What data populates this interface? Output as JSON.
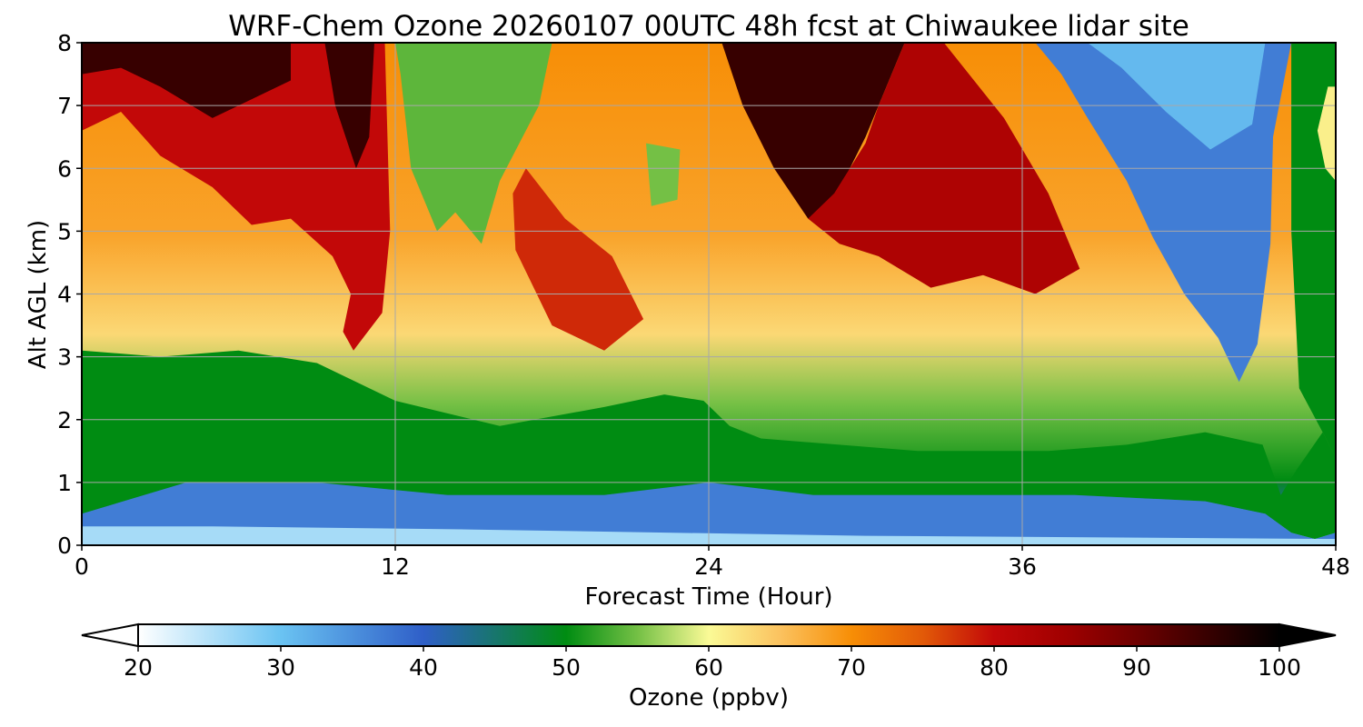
{
  "chart_data": {
    "type": "heatmap",
    "title": "WRF-Chem Ozone  20260107 00UTC 48h fcst at Chiwaukee lidar site",
    "xlabel": "Forecast Time (Hour)",
    "ylabel": "Alt AGL (km)",
    "xlim": [
      0,
      48
    ],
    "ylim": [
      0,
      8
    ],
    "x_ticks": [
      "0",
      "12",
      "24",
      "36",
      "48"
    ],
    "y_ticks": [
      "0",
      "1",
      "2",
      "3",
      "4",
      "5",
      "6",
      "7",
      "8"
    ],
    "grid": true,
    "colorbar": {
      "label": "Ozone  (ppbv)",
      "range": [
        20,
        100
      ],
      "ticks": [
        "20",
        "30",
        "40",
        "50",
        "60",
        "70",
        "80",
        "90",
        "100"
      ],
      "extend": "both",
      "stops": [
        {
          "v": 20,
          "color": "#ffffff"
        },
        {
          "v": 30,
          "color": "#6ac3f2"
        },
        {
          "v": 40,
          "color": "#2f5fc8"
        },
        {
          "v": 50,
          "color": "#008c12"
        },
        {
          "v": 55,
          "color": "#74c045"
        },
        {
          "v": 60,
          "color": "#fafa96"
        },
        {
          "v": 65,
          "color": "#fbc25f"
        },
        {
          "v": 70,
          "color": "#f78e06"
        },
        {
          "v": 75,
          "color": "#e25a08"
        },
        {
          "v": 80,
          "color": "#c20808"
        },
        {
          "v": 85,
          "color": "#a00000"
        },
        {
          "v": 90,
          "color": "#6e0000"
        },
        {
          "v": 100,
          "color": "#000000"
        }
      ]
    },
    "regions": [
      {
        "name": "black-upper-left",
        "value": 95,
        "pts": [
          [
            0,
            7.3
          ],
          [
            1.5,
            7.4
          ],
          [
            3,
            6.7
          ],
          [
            5,
            6.2
          ],
          [
            6.5,
            5.3
          ],
          [
            8,
            5.7
          ],
          [
            8,
            8
          ],
          [
            0,
            8
          ]
        ]
      },
      {
        "name": "red-upper-left",
        "value": 80,
        "pts": [
          [
            0,
            6.6
          ],
          [
            1.5,
            6.9
          ],
          [
            3,
            6.2
          ],
          [
            5,
            5.7
          ],
          [
            6.5,
            5.1
          ],
          [
            8,
            5.2
          ],
          [
            9.6,
            4.6
          ],
          [
            10.3,
            4.0
          ],
          [
            10,
            3.4
          ],
          [
            10.4,
            3.1
          ],
          [
            11.5,
            3.7
          ],
          [
            11.8,
            5.0
          ],
          [
            11.6,
            8
          ],
          [
            8,
            8
          ],
          [
            8,
            7.4
          ],
          [
            5,
            6.8
          ],
          [
            3,
            7.3
          ],
          [
            1.5,
            7.6
          ],
          [
            0,
            7.5
          ]
        ]
      },
      {
        "name": "black-streak-left",
        "value": 95,
        "pts": [
          [
            9.3,
            8
          ],
          [
            11.2,
            8
          ],
          [
            11.0,
            6.5
          ],
          [
            10.5,
            6.0
          ],
          [
            9.7,
            7.0
          ]
        ]
      },
      {
        "name": "green-upper-mid",
        "value": 54,
        "pts": [
          [
            12,
            8
          ],
          [
            18,
            8
          ],
          [
            17.5,
            7.0
          ],
          [
            16,
            5.8
          ],
          [
            15.3,
            4.8
          ],
          [
            14.3,
            5.3
          ],
          [
            13.6,
            5.0
          ],
          [
            12.6,
            6.0
          ],
          [
            12.2,
            7.5
          ]
        ]
      },
      {
        "name": "green-blob-mid",
        "value": 55,
        "pts": [
          [
            21.6,
            6.4
          ],
          [
            22.9,
            6.3
          ],
          [
            22.8,
            5.5
          ],
          [
            21.8,
            5.4
          ]
        ]
      },
      {
        "name": "red-mid",
        "value": 78,
        "pts": [
          [
            17,
            6.0
          ],
          [
            18.5,
            5.2
          ],
          [
            20.3,
            4.6
          ],
          [
            21.5,
            3.6
          ],
          [
            20,
            3.1
          ],
          [
            18,
            3.5
          ],
          [
            16.6,
            4.7
          ],
          [
            16.5,
            5.6
          ]
        ]
      },
      {
        "name": "black-upper-mid",
        "value": 95,
        "pts": [
          [
            24.5,
            8
          ],
          [
            31.5,
            8
          ],
          [
            30.5,
            7.0
          ],
          [
            30,
            6.5
          ],
          [
            28.8,
            5.5
          ],
          [
            27.8,
            5.2
          ],
          [
            26.5,
            6.0
          ],
          [
            25.3,
            7.0
          ]
        ]
      },
      {
        "name": "red-upper-right",
        "value": 83,
        "pts": [
          [
            27.8,
            5.2
          ],
          [
            29.0,
            4.8
          ],
          [
            30.5,
            4.6
          ],
          [
            32.5,
            4.1
          ],
          [
            34.5,
            4.3
          ],
          [
            36.5,
            4.0
          ],
          [
            38.2,
            4.4
          ],
          [
            37.0,
            5.6
          ],
          [
            35.3,
            6.8
          ],
          [
            33,
            8
          ],
          [
            31.5,
            8
          ],
          [
            30.5,
            7.0
          ],
          [
            30,
            6.4
          ],
          [
            28.8,
            5.6
          ]
        ]
      },
      {
        "name": "blue-upper-right",
        "value": 37,
        "pts": [
          [
            36.5,
            8
          ],
          [
            46.3,
            8
          ],
          [
            45.6,
            6.5
          ],
          [
            45.5,
            4.8
          ],
          [
            45.0,
            3.2
          ],
          [
            44.3,
            2.6
          ],
          [
            43.5,
            3.3
          ],
          [
            42.2,
            4.0
          ],
          [
            41.0,
            4.9
          ],
          [
            40.0,
            5.8
          ],
          [
            38.5,
            6.8
          ],
          [
            37.5,
            7.5
          ]
        ]
      },
      {
        "name": "lightblue-upper-right",
        "value": 31,
        "pts": [
          [
            38.5,
            8
          ],
          [
            45.3,
            8
          ],
          [
            44.8,
            6.7
          ],
          [
            43.2,
            6.3
          ],
          [
            41.5,
            6.9
          ],
          [
            39.8,
            7.6
          ]
        ]
      },
      {
        "name": "green-lower-band",
        "value": 50,
        "pts": [
          [
            0,
            0.5
          ],
          [
            4,
            1.0
          ],
          [
            9,
            1.0
          ],
          [
            14,
            0.8
          ],
          [
            20,
            0.8
          ],
          [
            24,
            1.0
          ],
          [
            28,
            0.8
          ],
          [
            33,
            0.8
          ],
          [
            38,
            0.8
          ],
          [
            43,
            0.7
          ],
          [
            45.3,
            0.5
          ],
          [
            46.3,
            0.2
          ],
          [
            47.2,
            0.1
          ],
          [
            48,
            0.2
          ],
          [
            48,
            1.4
          ],
          [
            47.5,
            1.8
          ],
          [
            46.5,
            1.2
          ],
          [
            45.9,
            0.8
          ],
          [
            45.2,
            1.6
          ],
          [
            43,
            1.8
          ],
          [
            40,
            1.6
          ],
          [
            37,
            1.5
          ],
          [
            32,
            1.5
          ],
          [
            26,
            1.7
          ],
          [
            24.8,
            1.9
          ],
          [
            23.8,
            2.3
          ],
          [
            22.3,
            2.4
          ],
          [
            20,
            2.2
          ],
          [
            16,
            1.9
          ],
          [
            12,
            2.3
          ],
          [
            9,
            2.9
          ],
          [
            6,
            3.1
          ],
          [
            3,
            3.0
          ],
          [
            0,
            3.1
          ]
        ]
      },
      {
        "name": "blue-surface",
        "value": 37,
        "pts": [
          [
            0,
            0.1
          ],
          [
            48,
            0.1
          ],
          [
            48,
            0.2
          ],
          [
            47.2,
            0.1
          ],
          [
            46.3,
            0.2
          ],
          [
            45.3,
            0.5
          ],
          [
            43,
            0.7
          ],
          [
            38,
            0.8
          ],
          [
            33,
            0.8
          ],
          [
            28,
            0.8
          ],
          [
            24,
            1.0
          ],
          [
            20,
            0.8
          ],
          [
            14,
            0.8
          ],
          [
            9,
            1.0
          ],
          [
            4,
            1.0
          ],
          [
            0,
            0.5
          ]
        ]
      },
      {
        "name": "lightblue-surface",
        "value": 26,
        "pts": [
          [
            0,
            0
          ],
          [
            48,
            0
          ],
          [
            48,
            0.1
          ],
          [
            30,
            0.15
          ],
          [
            15,
            0.25
          ],
          [
            5,
            0.3
          ],
          [
            0,
            0.3
          ]
        ]
      },
      {
        "name": "green-right-edge",
        "value": 50,
        "pts": [
          [
            46.3,
            8
          ],
          [
            48,
            8
          ],
          [
            48,
            1.4
          ],
          [
            47.5,
            1.8
          ],
          [
            46.6,
            2.5
          ],
          [
            46.3,
            5.0
          ]
        ]
      },
      {
        "name": "yellow-right-edge",
        "value": 61,
        "pts": [
          [
            47.7,
            7.3
          ],
          [
            48,
            7.3
          ],
          [
            48,
            5.8
          ],
          [
            47.6,
            6.0
          ],
          [
            47.3,
            6.6
          ]
        ]
      }
    ]
  }
}
